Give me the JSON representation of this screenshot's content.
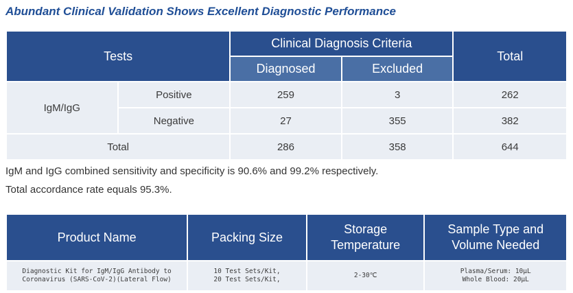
{
  "title": "Abundant Clinical Validation Shows Excellent Diagnostic Performance",
  "validation_table": {
    "tests_header": "Tests",
    "criteria_header": "Clinical Diagnosis Criteria",
    "total_header": "Total",
    "diagnosed_header": "Diagnosed",
    "excluded_header": "Excluded",
    "group_label": "IgM/IgG",
    "rows": [
      {
        "label": "Positive",
        "diagnosed": "259",
        "excluded": "3",
        "total": "262"
      },
      {
        "label": "Negative",
        "diagnosed": "27",
        "excluded": "355",
        "total": "382"
      }
    ],
    "total_row": {
      "label": "Total",
      "diagnosed": "286",
      "excluded": "358",
      "total": "644"
    }
  },
  "notes": [
    "IgM and IgG combined sensitivity and specificity is 90.6% and 99.2% respectively.",
    "Total accordance rate equals 95.3%."
  ],
  "product_table": {
    "headers": {
      "product_name": "Product Name",
      "packing_size": "Packing Size",
      "storage_line1": "Storage",
      "storage_line2": "Temperature",
      "sample_line1": "Sample Type and",
      "sample_line2": "Volume Needed"
    },
    "row": {
      "product_line1": "Diagnostic Kit for IgM/IgG Antibody to",
      "product_line2": "Coronavirus (SARS-CoV-2)(Lateral Flow)",
      "packing_line1": "10 Test Sets/Kit,",
      "packing_line2": "20 Test Sets/Kit,",
      "storage": "2-30℃",
      "sample_line1": "Plasma/Serum: 10μL",
      "sample_line2": "Whole Blood: 20μL"
    }
  }
}
